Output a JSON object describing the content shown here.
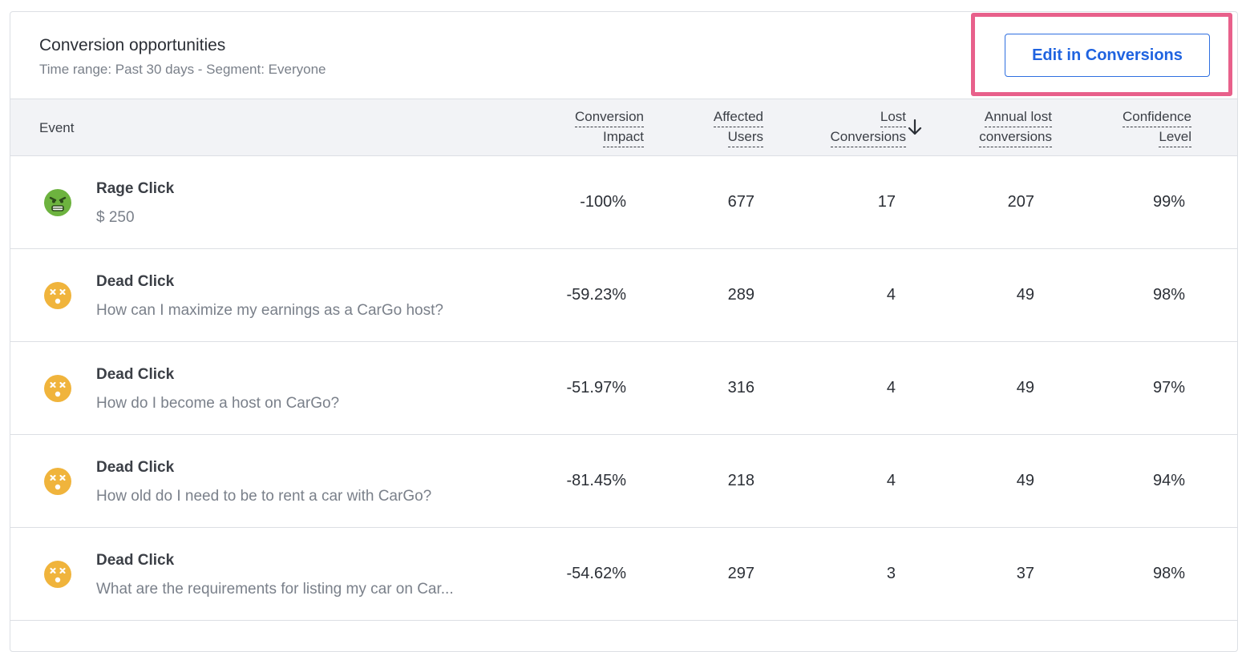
{
  "header": {
    "title": "Conversion opportunities",
    "subtitle": "Time range: Past 30 days - Segment: Everyone",
    "edit_button": "Edit in Conversions"
  },
  "columns": {
    "event": "Event",
    "conversion_impact": [
      "Conversion",
      "Impact"
    ],
    "affected_users": [
      "Affected",
      "Users"
    ],
    "lost_conversions": [
      "Lost",
      "Conversions"
    ],
    "annual_lost": [
      "Annual lost",
      "conversions"
    ],
    "confidence": [
      "Confidence",
      "Level"
    ],
    "sort_icon": "arrow-down-icon"
  },
  "colors": {
    "rage": "#6db33f",
    "dead": "#f0b43c",
    "accent": "#1f63e0",
    "highlight": "#e8608b"
  },
  "rows": [
    {
      "icon": "angry-face-icon",
      "name": "Rage Click",
      "desc": "$ 250",
      "impact": "-100%",
      "users": "677",
      "lost": "17",
      "annual": "207",
      "confidence": "99%"
    },
    {
      "icon": "dizzy-face-icon",
      "name": "Dead Click",
      "desc": "How can I maximize my earnings as a CarGo host?",
      "impact": "-59.23%",
      "users": "289",
      "lost": "4",
      "annual": "49",
      "confidence": "98%"
    },
    {
      "icon": "dizzy-face-icon",
      "name": "Dead Click",
      "desc": "How do I become a host on CarGo?",
      "impact": "-51.97%",
      "users": "316",
      "lost": "4",
      "annual": "49",
      "confidence": "97%"
    },
    {
      "icon": "dizzy-face-icon",
      "name": "Dead Click",
      "desc": "How old do I need to be to rent a car with CarGo?",
      "impact": "-81.45%",
      "users": "218",
      "lost": "4",
      "annual": "49",
      "confidence": "94%"
    },
    {
      "icon": "dizzy-face-icon",
      "name": "Dead Click",
      "desc": "What are the requirements for listing my car on Car...",
      "impact": "-54.62%",
      "users": "297",
      "lost": "3",
      "annual": "37",
      "confidence": "98%"
    }
  ]
}
